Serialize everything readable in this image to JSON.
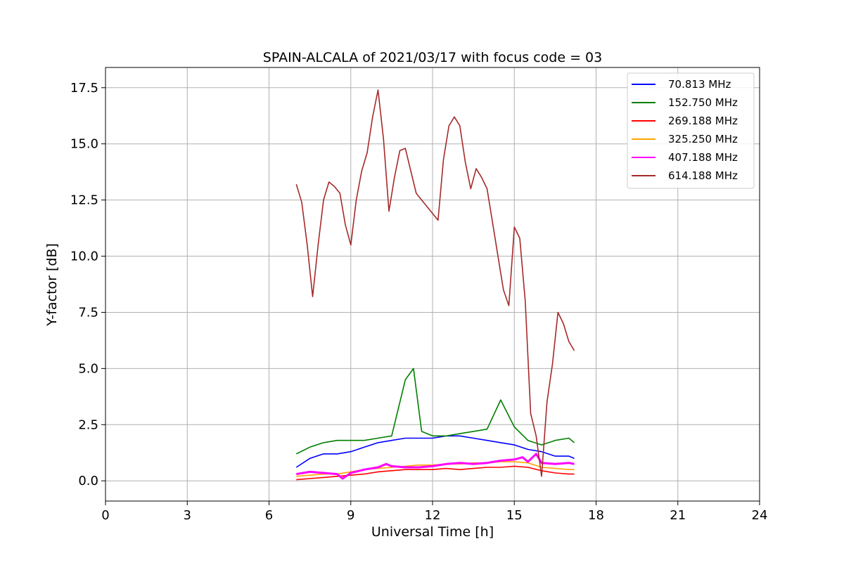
{
  "chart_data": {
    "type": "line",
    "title": "SPAIN-ALCALA of 2021/03/17 with focus code = 03",
    "xlabel": "Universal Time [h]",
    "ylabel": "Y-factor [dB]",
    "xlim": [
      0,
      24
    ],
    "ylim": [
      -0.9,
      18.4
    ],
    "xticks": [
      0,
      3,
      6,
      9,
      12,
      15,
      18,
      21,
      24
    ],
    "xtick_labels": [
      "0",
      "3",
      "6",
      "9",
      "12",
      "15",
      "18",
      "21",
      "24"
    ],
    "yticks": [
      0,
      2.5,
      5,
      7.5,
      10,
      12.5,
      15,
      17.5
    ],
    "ytick_labels": [
      "0.0",
      "2.5",
      "5.0",
      "7.5",
      "10.0",
      "12.5",
      "15.0",
      "17.5"
    ],
    "grid": true,
    "legend_position": "top-right",
    "series": [
      {
        "name": " 70.813 MHz",
        "color": "#0000ff",
        "x": [
          7.0,
          7.5,
          8.0,
          8.5,
          9.0,
          9.5,
          10.0,
          10.5,
          11.0,
          11.5,
          12.0,
          12.5,
          13.0,
          13.5,
          14.0,
          14.5,
          15.0,
          15.5,
          16.0,
          16.5,
          17.0,
          17.2
        ],
        "y": [
          0.6,
          1.0,
          1.2,
          1.2,
          1.3,
          1.5,
          1.7,
          1.8,
          1.9,
          1.9,
          1.9,
          2.0,
          2.0,
          1.9,
          1.8,
          1.7,
          1.6,
          1.4,
          1.3,
          1.1,
          1.1,
          1.0
        ]
      },
      {
        "name": "152.750 MHz",
        "color": "#008000",
        "x": [
          7.0,
          7.5,
          8.0,
          8.5,
          9.0,
          9.5,
          10.0,
          10.5,
          11.0,
          11.3,
          11.6,
          12.0,
          12.5,
          13.0,
          13.5,
          14.0,
          14.5,
          15.0,
          15.5,
          16.0,
          16.5,
          17.0,
          17.2
        ],
        "y": [
          1.2,
          1.5,
          1.7,
          1.8,
          1.8,
          1.8,
          1.9,
          2.0,
          4.5,
          5.0,
          2.2,
          2.0,
          2.0,
          2.1,
          2.2,
          2.3,
          3.6,
          2.4,
          1.8,
          1.6,
          1.8,
          1.9,
          1.7
        ]
      },
      {
        "name": "269.188 MHz",
        "color": "#ff0000",
        "x": [
          7.0,
          7.5,
          8.0,
          8.5,
          9.0,
          9.5,
          10.0,
          10.5,
          11.0,
          11.5,
          12.0,
          12.5,
          13.0,
          13.5,
          14.0,
          14.5,
          15.0,
          15.5,
          16.0,
          16.5,
          17.0,
          17.2
        ],
        "y": [
          0.05,
          0.1,
          0.15,
          0.2,
          0.25,
          0.3,
          0.4,
          0.45,
          0.5,
          0.5,
          0.5,
          0.55,
          0.5,
          0.55,
          0.6,
          0.6,
          0.65,
          0.6,
          0.45,
          0.35,
          0.3,
          0.3
        ]
      },
      {
        "name": "325.250 MHz",
        "color": "#ffa500",
        "x": [
          7.0,
          7.5,
          8.0,
          8.5,
          9.0,
          9.5,
          10.0,
          10.5,
          11.0,
          11.5,
          12.0,
          12.5,
          13.0,
          13.5,
          14.0,
          14.5,
          15.0,
          15.5,
          16.0,
          16.5,
          17.0,
          17.2
        ],
        "y": [
          0.2,
          0.25,
          0.3,
          0.3,
          0.4,
          0.5,
          0.55,
          0.6,
          0.65,
          0.7,
          0.7,
          0.75,
          0.75,
          0.8,
          0.8,
          0.85,
          0.85,
          0.8,
          0.6,
          0.55,
          0.5,
          0.5
        ]
      },
      {
        "name": "407.188 MHz",
        "color": "#ff00ff",
        "x": [
          7.0,
          7.5,
          8.0,
          8.5,
          8.7,
          9.0,
          9.5,
          10.0,
          10.3,
          10.5,
          11.0,
          11.5,
          12.0,
          12.5,
          13.0,
          13.5,
          14.0,
          14.5,
          15.0,
          15.3,
          15.5,
          15.8,
          16.0,
          16.5,
          17.0,
          17.2
        ],
        "y": [
          0.3,
          0.4,
          0.35,
          0.3,
          0.1,
          0.35,
          0.5,
          0.6,
          0.75,
          0.65,
          0.6,
          0.6,
          0.65,
          0.75,
          0.8,
          0.75,
          0.8,
          0.9,
          0.95,
          1.05,
          0.85,
          1.2,
          0.8,
          0.75,
          0.8,
          0.75
        ]
      },
      {
        "name": "614.188 MHz",
        "color": "#a52a2a",
        "x": [
          7.0,
          7.2,
          7.4,
          7.6,
          7.8,
          8.0,
          8.2,
          8.4,
          8.6,
          8.8,
          9.0,
          9.2,
          9.4,
          9.6,
          9.8,
          10.0,
          10.2,
          10.4,
          10.6,
          10.8,
          11.0,
          11.2,
          11.4,
          11.6,
          11.8,
          12.0,
          12.2,
          12.4,
          12.6,
          12.8,
          13.0,
          13.2,
          13.4,
          13.6,
          13.8,
          14.0,
          14.2,
          14.4,
          14.6,
          14.8,
          15.0,
          15.2,
          15.4,
          15.6,
          15.8,
          16.0,
          16.2,
          16.4,
          16.6,
          16.8,
          17.0,
          17.2
        ],
        "y": [
          13.2,
          12.4,
          10.5,
          8.2,
          10.5,
          12.5,
          13.3,
          13.1,
          12.8,
          11.4,
          10.5,
          12.5,
          13.8,
          14.6,
          16.2,
          17.4,
          15.2,
          12.0,
          13.5,
          14.7,
          14.8,
          13.8,
          12.8,
          12.5,
          12.2,
          11.9,
          11.6,
          14.3,
          15.8,
          16.2,
          15.8,
          14.2,
          13.0,
          13.9,
          13.5,
          13.0,
          11.5,
          10.0,
          8.5,
          7.8,
          11.3,
          10.8,
          8.0,
          3.0,
          2.0,
          0.2,
          3.5,
          5.2,
          7.5,
          7.0,
          6.2,
          5.8
        ]
      }
    ]
  }
}
